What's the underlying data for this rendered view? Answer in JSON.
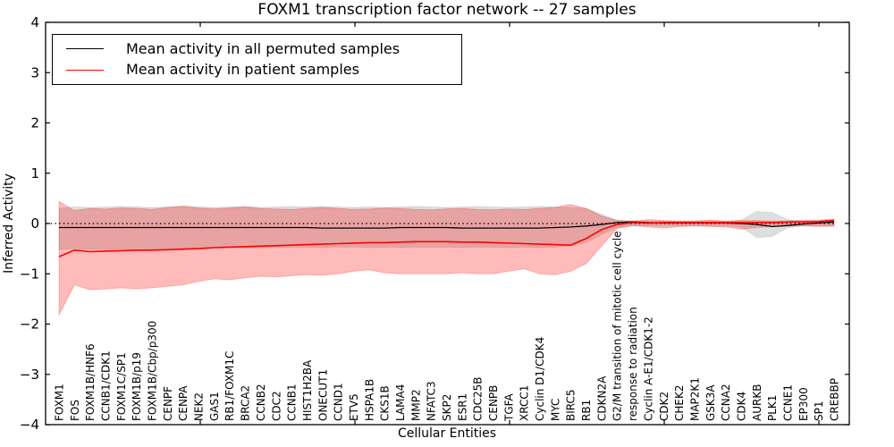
{
  "title": "FOXM1 transcription factor network -- 27 samples",
  "legend": [
    {
      "label": "Mean activity in all permuted samples",
      "color": "#000000"
    },
    {
      "label": "Mean activity in patient samples",
      "color": "#ff0000"
    }
  ],
  "chart_data": {
    "type": "line",
    "title": "FOXM1 transcription factor network -- 27 samples",
    "xlabel": "Cellular Entities",
    "ylabel": "Inferred Activity",
    "ylim": [
      -4,
      4
    ],
    "yticks": [
      4,
      3,
      2,
      1,
      0,
      -1,
      -2,
      -3,
      -4
    ],
    "grid": false,
    "legend_position": "upper left",
    "zero_line": {
      "style": "dotted",
      "color": "#000000",
      "y": 0
    },
    "categories": [
      "FOXM1",
      "FOS",
      "FOXM1B/HNF6",
      "CCNB1/CDK1",
      "FOXM1C/SP1",
      "FOXM1B/p19",
      "FOXM1B/Cbp/p300",
      "CENPF",
      "CENPA",
      "NEK2",
      "GAS1",
      "RB1/FOXM1C",
      "BRCA2",
      "CCNB2",
      "CDC2",
      "CCNB1",
      "HIST1H2BA",
      "ONECUT1",
      "CCND1",
      "ETV5",
      "HSPA1B",
      "CKS1B",
      "LAMA4",
      "MMP2",
      "NFATC3",
      "SKP2",
      "ESR1",
      "CDC25B",
      "CENPB",
      "TGFA",
      "XRCC1",
      "Cyclin D1/CDK4",
      "MYC",
      "BIRC5",
      "RB1",
      "CDKN2A",
      "G2/M transition of mitotic cell cycle",
      "response to radiation",
      "Cyclin A-E1/CDK1-2",
      "CDK2",
      "CHEK2",
      "MAP2K1",
      "GSK3A",
      "CCNA2",
      "CDK4",
      "AURKB",
      "PLK1",
      "CCNE1",
      "EP300",
      "SP1",
      "CREBBP"
    ],
    "series": [
      {
        "name": "mean-activity-permuted-line",
        "label": "Mean activity in all permuted samples",
        "color": "#000000",
        "values": [
          -0.08,
          -0.08,
          -0.08,
          -0.08,
          -0.08,
          -0.08,
          -0.08,
          -0.08,
          -0.08,
          -0.08,
          -0.08,
          -0.08,
          -0.08,
          -0.08,
          -0.08,
          -0.08,
          -0.08,
          -0.09,
          -0.09,
          -0.09,
          -0.09,
          -0.09,
          -0.08,
          -0.08,
          -0.08,
          -0.08,
          -0.09,
          -0.09,
          -0.09,
          -0.09,
          -0.09,
          -0.09,
          -0.08,
          -0.07,
          -0.05,
          -0.02,
          0.02,
          0.03,
          0.02,
          0.01,
          0.01,
          0.01,
          0.01,
          0.01,
          0.0,
          -0.02,
          -0.06,
          -0.04,
          -0.01,
          0.01,
          0.03
        ]
      },
      {
        "name": "mean-activity-patient-line",
        "label": "Mean activity in patient samples",
        "color": "#ff0000",
        "values": [
          -0.66,
          -0.53,
          -0.56,
          -0.55,
          -0.54,
          -0.53,
          -0.53,
          -0.52,
          -0.51,
          -0.5,
          -0.48,
          -0.47,
          -0.46,
          -0.45,
          -0.44,
          -0.43,
          -0.42,
          -0.41,
          -0.4,
          -0.39,
          -0.38,
          -0.38,
          -0.37,
          -0.36,
          -0.36,
          -0.36,
          -0.37,
          -0.37,
          -0.38,
          -0.39,
          -0.4,
          -0.41,
          -0.42,
          -0.43,
          -0.3,
          -0.12,
          -0.02,
          0.02,
          0.01,
          0.02,
          0.02,
          0.02,
          0.02,
          0.02,
          0.02,
          0.02,
          0.02,
          0.03,
          0.03,
          0.04,
          0.06
        ]
      }
    ],
    "bands": [
      {
        "name": "permuted-confidence-band",
        "fill": "rgba(0,0,0,0.13)",
        "edge": "rgba(0,0,0,0.08)",
        "upper": [
          0.3,
          0.33,
          0.32,
          0.33,
          0.34,
          0.33,
          0.32,
          0.33,
          0.35,
          0.33,
          0.32,
          0.33,
          0.34,
          0.32,
          0.33,
          0.34,
          0.33,
          0.34,
          0.33,
          0.32,
          0.33,
          0.32,
          0.33,
          0.34,
          0.33,
          0.32,
          0.33,
          0.34,
          0.33,
          0.32,
          0.33,
          0.34,
          0.33,
          0.32,
          0.3,
          0.18,
          0.07,
          0.05,
          0.05,
          0.05,
          0.05,
          0.05,
          0.05,
          0.05,
          0.07,
          0.24,
          0.22,
          0.08,
          0.05,
          0.05,
          0.06
        ],
        "lower": [
          -0.52,
          -0.5,
          -0.51,
          -0.52,
          -0.51,
          -0.5,
          -0.51,
          -0.5,
          -0.49,
          -0.5,
          -0.49,
          -0.48,
          -0.48,
          -0.48,
          -0.47,
          -0.48,
          -0.47,
          -0.48,
          -0.47,
          -0.47,
          -0.48,
          -0.47,
          -0.48,
          -0.47,
          -0.48,
          -0.47,
          -0.48,
          -0.47,
          -0.47,
          -0.48,
          -0.47,
          -0.48,
          -0.47,
          -0.45,
          -0.38,
          -0.22,
          -0.08,
          -0.05,
          -0.05,
          -0.05,
          -0.05,
          -0.05,
          -0.05,
          -0.05,
          -0.07,
          -0.28,
          -0.26,
          -0.09,
          -0.05,
          -0.05,
          -0.06
        ]
      },
      {
        "name": "patient-confidence-band",
        "fill": "rgba(255,0,0,0.27)",
        "edge": "rgba(255,0,0,0.22)",
        "upper": [
          0.44,
          0.26,
          0.3,
          0.29,
          0.31,
          0.3,
          0.28,
          0.32,
          0.34,
          0.31,
          0.29,
          0.31,
          0.33,
          0.3,
          0.29,
          0.28,
          0.3,
          0.32,
          0.3,
          0.28,
          0.29,
          0.31,
          0.3,
          0.28,
          0.27,
          0.29,
          0.3,
          0.28,
          0.27,
          0.29,
          0.28,
          0.3,
          0.32,
          0.38,
          0.3,
          0.15,
          0.06,
          0.05,
          0.08,
          0.06,
          0.05,
          0.05,
          0.07,
          0.05,
          0.06,
          0.06,
          0.05,
          0.05,
          0.06,
          0.07,
          0.09
        ],
        "lower": [
          -1.82,
          -1.22,
          -1.32,
          -1.3,
          -1.28,
          -1.3,
          -1.28,
          -1.25,
          -1.22,
          -1.15,
          -1.1,
          -1.12,
          -1.08,
          -1.05,
          -1.06,
          -1.04,
          -1.02,
          -1.03,
          -1.0,
          -0.95,
          -0.92,
          -0.98,
          -1.0,
          -1.0,
          -1.0,
          -1.0,
          -0.98,
          -1.0,
          -1.0,
          -0.95,
          -0.9,
          -1.0,
          -1.02,
          -0.95,
          -0.8,
          -0.45,
          -0.1,
          -0.04,
          -0.07,
          -0.09,
          -0.06,
          -0.05,
          -0.06,
          -0.07,
          -0.11,
          -0.08,
          -0.06,
          -0.05,
          -0.05,
          -0.06,
          -0.05
        ]
      }
    ]
  }
}
